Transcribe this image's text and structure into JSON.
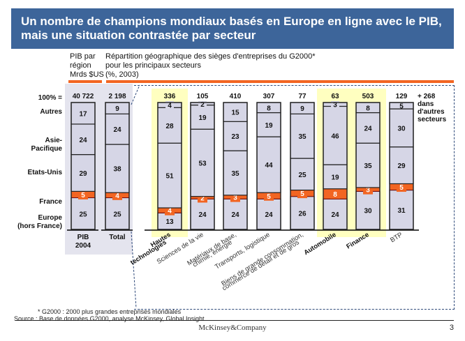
{
  "slide": {
    "title_line1": "Un nombre de champions mondiaux basés en Europe en ligne avec le PIB,",
    "title_line2": "mais une situation contrastée par secteur",
    "header_left": [
      "PIB par",
      "région",
      "Mrds $US"
    ],
    "header_right": [
      "Répartition géographique des sièges d'entreprises du G2000*",
      "pour les principaux secteurs",
      "(%, 2003)"
    ],
    "footnote": "* G2000 : 2000 plus grandes entreprises mondiales",
    "source": "Source : Base de données G2000, analyse McKinsey, Global Insight",
    "brand": "McKinsey&Company",
    "page_number": "3",
    "extra_note": [
      "+ 268",
      "dans",
      "d'autres",
      "secteurs"
    ]
  },
  "chart_data": {
    "type": "bar",
    "stacked": true,
    "percent": true,
    "total_label": "100% =",
    "segments_bottom_to_top": [
      "Europe (hors France)",
      "France",
      "Etats-Unis",
      "Asie-Pacifique",
      "Autres"
    ],
    "row_labels": [
      {
        "key": "Autres",
        "lines": [
          "Autres"
        ]
      },
      {
        "key": "Asie-Pacifique",
        "lines": [
          "Asie-",
          "Pacifique"
        ]
      },
      {
        "key": "Etats-Unis",
        "lines": [
          "Etats-Unis"
        ]
      },
      {
        "key": "France",
        "lines": [
          "France"
        ]
      },
      {
        "key": "Europe (hors France)",
        "lines": [
          "Europe",
          "(hors France)"
        ]
      }
    ],
    "colors": {
      "segment": "#d6d6e6",
      "france": "#f26522",
      "france_border": "#7a0a0a",
      "highlight": "#ffffc0",
      "panel": "#e4e4ee",
      "orange": "#f26522",
      "navy": "#2f4a7a"
    },
    "categories": [
      {
        "label": [
          "PIB",
          "2004"
        ],
        "total": "40 722",
        "values": [
          25,
          5,
          29,
          24,
          17
        ],
        "group": "left",
        "bold": true
      },
      {
        "label": [
          "Total"
        ],
        "total": "2 198",
        "values": [
          25,
          4,
          38,
          24,
          9
        ],
        "group": "left",
        "bold": true
      },
      {
        "label": [
          "Hautes",
          "technologies"
        ],
        "total": "336",
        "values": [
          13,
          4,
          51,
          28,
          4
        ],
        "group": "sector",
        "highlight": true,
        "bold": true
      },
      {
        "label": [
          "Sciences de la vie"
        ],
        "total": "105",
        "values": [
          24,
          2,
          53,
          19,
          2
        ],
        "group": "sector"
      },
      {
        "label": [
          "Matériaux de base,",
          "chimie, énergie"
        ],
        "total": "410",
        "values": [
          24,
          3,
          35,
          23,
          15
        ],
        "group": "sector"
      },
      {
        "label": [
          "Transports, logistique"
        ],
        "total": "307",
        "values": [
          24,
          5,
          44,
          19,
          8
        ],
        "group": "sector"
      },
      {
        "label": [
          "Biens de grande consommation,",
          "commerce de détail et de gros"
        ],
        "total": "77",
        "values": [
          26,
          5,
          25,
          35,
          9
        ],
        "group": "sector"
      },
      {
        "label": [
          "Automobile"
        ],
        "total": "63",
        "values": [
          24,
          8,
          19,
          46,
          3
        ],
        "group": "sector",
        "highlight": true,
        "bold": true
      },
      {
        "label": [
          "Finance"
        ],
        "total": "503",
        "values": [
          30,
          3,
          35,
          24,
          8
        ],
        "group": "sector",
        "highlight": true,
        "bold": true
      },
      {
        "label": [
          "BTP"
        ],
        "total": "129",
        "values": [
          31,
          5,
          29,
          30,
          5
        ],
        "group": "sector"
      }
    ]
  }
}
